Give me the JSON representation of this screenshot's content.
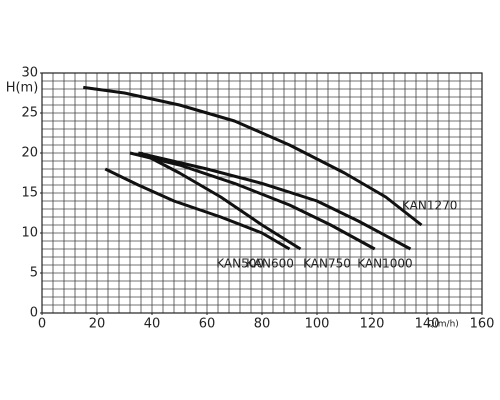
{
  "chart_data": {
    "type": "line",
    "xlabel": "Q(m/h)",
    "ylabel": "H(m)",
    "xlim": [
      0,
      160
    ],
    "ylim": [
      0,
      30
    ],
    "xticks": [
      0,
      20,
      40,
      60,
      80,
      100,
      120,
      140,
      160
    ],
    "yticks": [
      0,
      5,
      10,
      15,
      20,
      25,
      30
    ],
    "grid": true,
    "series": [
      {
        "name": "KAN1270",
        "color": "#111111",
        "x": [
          15,
          30,
          50,
          70,
          90,
          110,
          125,
          138
        ],
        "values": [
          28.2,
          27.5,
          26,
          24,
          21,
          17.5,
          14.5,
          11
        ]
      },
      {
        "name": "KAN1000",
        "color": "#111111",
        "x": [
          35,
          60,
          80,
          100,
          115,
          134
        ],
        "values": [
          20,
          18,
          16.2,
          14,
          11.5,
          8
        ]
      },
      {
        "name": "KAN750",
        "color": "#111111",
        "x": [
          32,
          50,
          70,
          90,
          105,
          121
        ],
        "values": [
          20,
          18.5,
          16.2,
          13.5,
          11,
          8
        ]
      },
      {
        "name": "KAN600",
        "color": "#111111",
        "x": [
          36,
          50,
          65,
          80,
          94
        ],
        "values": [
          20,
          17.5,
          14.5,
          11,
          8
        ]
      },
      {
        "name": "KAN500",
        "color": "#111111",
        "x": [
          23,
          35,
          48,
          65,
          80,
          90
        ],
        "values": [
          18,
          16,
          14,
          12,
          10,
          8
        ]
      }
    ]
  }
}
